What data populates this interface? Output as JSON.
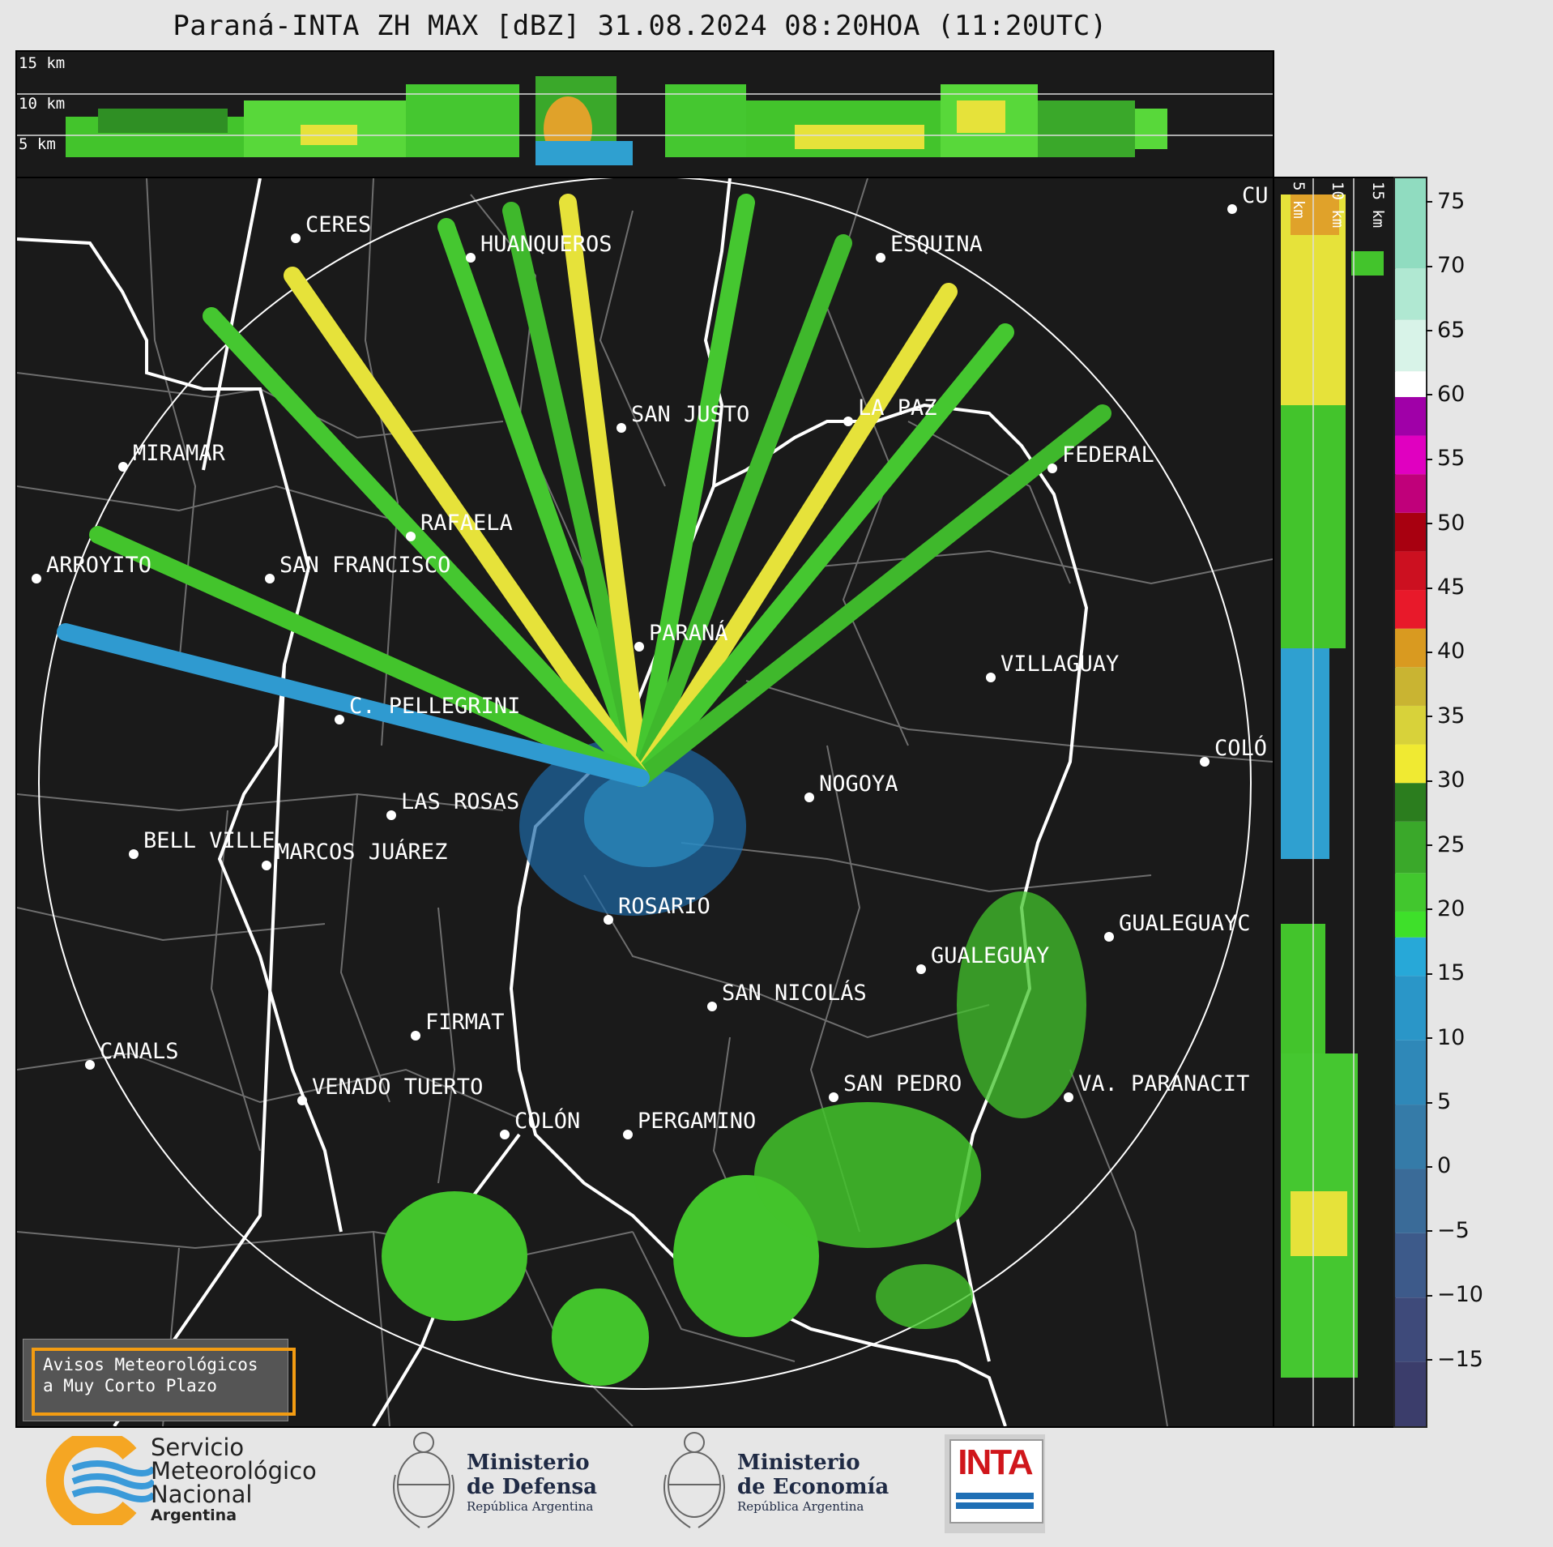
{
  "title": "Paraná-INTA ZH MAX [dBZ] 31.08.2024 08:20HOA (11:20UTC)",
  "height_labels_top": [
    "15 km",
    "10 km",
    "5 km"
  ],
  "height_labels_side": [
    "5 km",
    "10 km",
    "15 km"
  ],
  "cities": [
    {
      "name": "CERES",
      "label": "CERES"
    },
    {
      "name": "HUANQUEROS",
      "label": "HUANQUEROS"
    },
    {
      "name": "ESQUINA",
      "label": "ESQUINA"
    },
    {
      "name": "CU",
      "label": "CU"
    },
    {
      "name": "SAN JUSTO",
      "label": "SAN JUSTO"
    },
    {
      "name": "LA PAZ",
      "label": "LA PAZ"
    },
    {
      "name": "MIRAMAR",
      "label": "MIRAMAR"
    },
    {
      "name": "FEDERAL",
      "label": "FEDERAL"
    },
    {
      "name": "RAFAELA",
      "label": "RAFAELA"
    },
    {
      "name": "ARROYITO",
      "label": "ARROYITO"
    },
    {
      "name": "SAN FRANCISCO",
      "label": "SAN FRANCISCO"
    },
    {
      "name": "PARANÁ",
      "label": "PARANÁ"
    },
    {
      "name": "VILLAGUAY",
      "label": "VILLAGUAY"
    },
    {
      "name": "C. PELLEGRINI",
      "label": "C. PELLEGRINI"
    },
    {
      "name": "COLÓ",
      "label": "COLÓ"
    },
    {
      "name": "NOGOYA",
      "label": "NOGOYA"
    },
    {
      "name": "LAS ROSAS",
      "label": "LAS ROSAS"
    },
    {
      "name": "BELL VILLE",
      "label": "BELL VILLE"
    },
    {
      "name": "MARCOS JUÁREZ",
      "label": "MARCOS JUÁREZ"
    },
    {
      "name": "ROSARIO",
      "label": "ROSARIO"
    },
    {
      "name": "GUALEGUAYC",
      "label": "GUALEGUAYC"
    },
    {
      "name": "GUALEGUAY",
      "label": "GUALEGUAY"
    },
    {
      "name": "SAN NICOLÁS",
      "label": "SAN NICOLÁS"
    },
    {
      "name": "FIRMAT",
      "label": "FIRMAT"
    },
    {
      "name": "CANALS",
      "label": "CANALS"
    },
    {
      "name": "SAN PEDRO",
      "label": "SAN PEDRO"
    },
    {
      "name": "VENADO TUERTO",
      "label": "VENADO TUERTO"
    },
    {
      "name": "VA. PARANACIT",
      "label": "VA. PARANACIT"
    },
    {
      "name": "COLÓN",
      "label": "COLÓN"
    },
    {
      "name": "PERGAMINO",
      "label": "PERGAMINO"
    }
  ],
  "colorbar": {
    "ticks": [
      "75",
      "70",
      "65",
      "60",
      "55",
      "50",
      "45",
      "40",
      "35",
      "30",
      "25",
      "20",
      "15",
      "10",
      "5",
      "0",
      "−5",
      "−10",
      "−15"
    ],
    "range": [
      -20,
      77
    ]
  },
  "notice": {
    "line1": "Avisos Meteorológicos",
    "line2": "a Muy Corto Plazo"
  },
  "logos": {
    "smn": {
      "line1": "Servicio",
      "line2": "Meteorológico",
      "line3": "Nacional",
      "line4": "Argentina"
    },
    "defensa": {
      "line1": "Ministerio",
      "line2": "de Defensa",
      "line3": "República Argentina"
    },
    "economia": {
      "line1": "Ministerio",
      "line2": "de Economía",
      "line3": "República Argentina"
    },
    "inta": {
      "label": "INTA"
    }
  }
}
